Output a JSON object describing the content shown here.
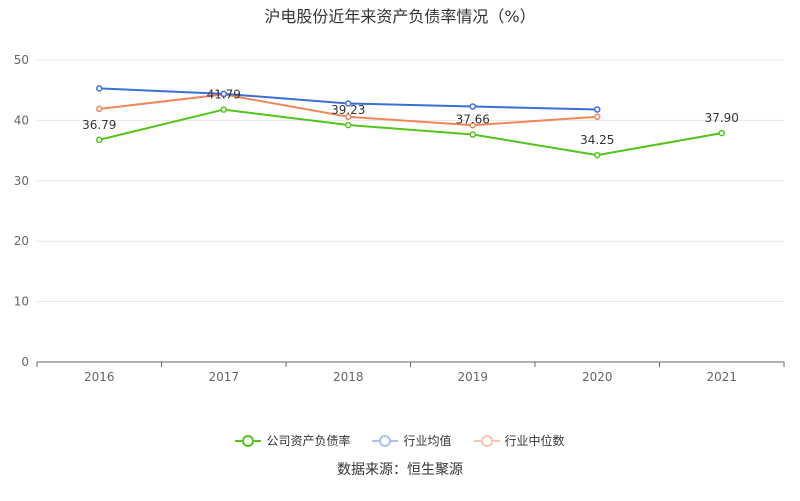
{
  "chart_data": {
    "type": "line",
    "title": "沪电股份近年来资产负债率情况（%）",
    "categories": [
      "2016",
      "2017",
      "2018",
      "2019",
      "2020",
      "2021"
    ],
    "ylim": [
      0,
      50
    ],
    "yticks": [
      0,
      10,
      20,
      30,
      40,
      50
    ],
    "grid": true,
    "legend_position": "bottom",
    "series": [
      {
        "name": "公司资产负债率",
        "color": "#52c41a",
        "values": [
          36.79,
          41.79,
          39.23,
          37.66,
          34.25,
          37.9
        ],
        "labels": [
          "36.79",
          "41.79",
          "39.23",
          "37.66",
          "34.25",
          "37.90"
        ]
      },
      {
        "name": "行业均值",
        "color": "#3a6fd8",
        "values": [
          45.3,
          44.4,
          42.8,
          42.3,
          41.8,
          null
        ]
      },
      {
        "name": "行业中位数",
        "color": "#f0875a",
        "values": [
          41.9,
          44.3,
          40.6,
          39.2,
          40.6,
          null
        ]
      }
    ]
  },
  "legend": {
    "color_faded": [
      "#b2d8a0",
      "#a9c1ef",
      "#f7c4ad"
    ]
  },
  "source": "数据来源：恒生聚源"
}
